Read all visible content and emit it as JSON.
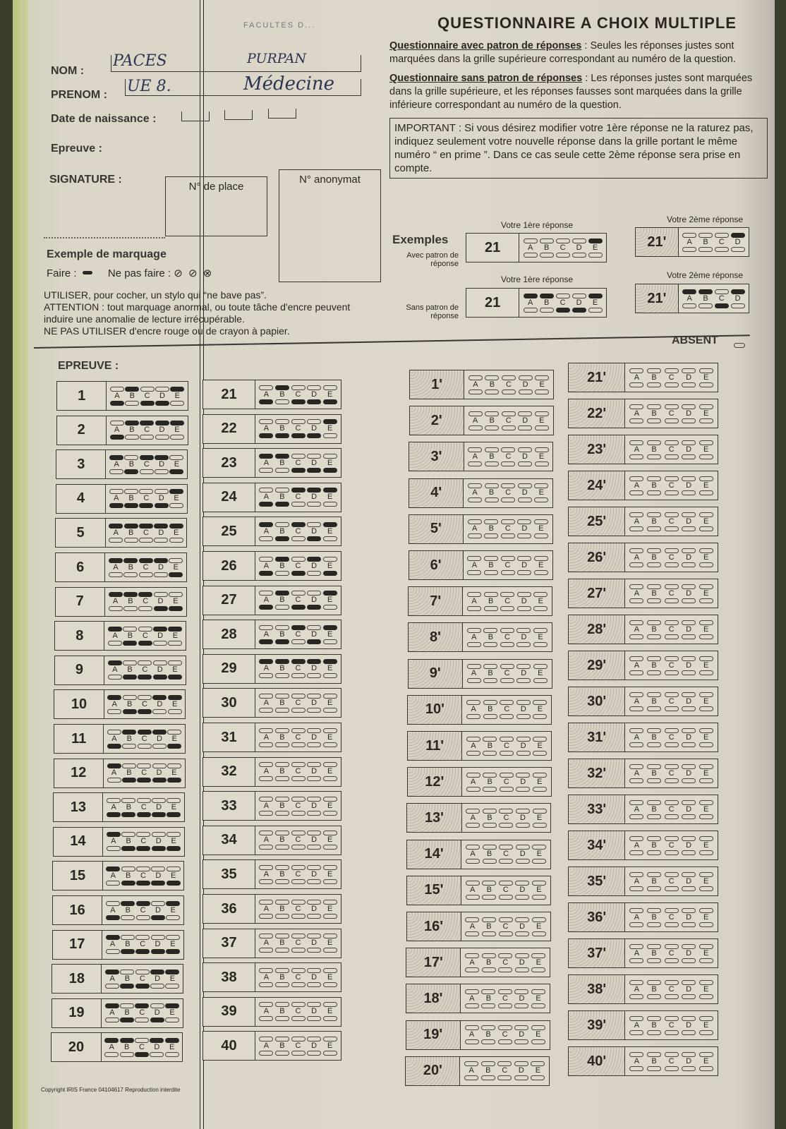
{
  "header": {
    "faded_title": "FACULTES D...",
    "title": "QUESTIONNAIRE A CHOIX MULTIPLE"
  },
  "identity": {
    "nom_label": "NOM :",
    "nom_value_1": "PACES",
    "nom_value_2": "PURPAN",
    "prenom_label": "PRENOM :",
    "prenom_value_1": "UE 8.",
    "prenom_value_2": "Médecine",
    "birth_label": "Date de naissance :",
    "epreuve_label": "Epreuve :",
    "signature_label": "SIGNATURE :",
    "place_label": "N° de place",
    "anonymat_label": "N° anonymat"
  },
  "instructions": {
    "avec_title": "Questionnaire avec patron de réponses",
    "avec_text": " : Seules les réponses justes sont marquées dans la grille supérieure correspondant au numéro de la question.",
    "sans_title": "Questionnaire sans patron de réponses",
    "sans_text": " : Les réponses justes sont marquées dans la grille supérieure, et les réponses fausses sont marquées dans la grille inférieure correspondant au numéro de la question.",
    "important": "IMPORTANT : Si vous désirez modifier votre 1ère réponse ne la raturez pas, indiquez seulement votre nouvelle réponse dans la grille portant le même numéro “ en prime ”. Dans ce cas seule cette 2ème réponse sera prise en compte."
  },
  "marking": {
    "title": "Exemple de marquage",
    "do": "Faire :",
    "dont": "Ne pas faire :",
    "warn1": "UTILISER, pour cocher, un stylo qui “ne bave pas”.",
    "warn2": "ATTENTION : tout marquage anormal, ou toute tâche d'encre peuvent induire une anomalie de lecture irrécupérable.",
    "warn3": "NE PAS UTILISER d'encre rouge ou de crayon à papier."
  },
  "examples": {
    "title": "Exemples",
    "first": "Votre 1ère réponse",
    "second": "Votre 2ème réponse",
    "avec": "Avec patron de réponse",
    "sans": "Sans patron de réponse",
    "rows": [
      {
        "n": "21",
        "top": [
          "E"
        ],
        "bottom": []
      },
      {
        "n": "21'",
        "top": [
          "D"
        ],
        "bottom": [],
        "letters": [
          "A",
          "B",
          "C",
          "D"
        ]
      },
      {
        "n": "21",
        "top": [
          "A",
          "B",
          "E"
        ],
        "bottom": [
          "C",
          "D"
        ]
      },
      {
        "n": "21'",
        "top": [
          "A",
          "B",
          "D"
        ],
        "bottom": [
          "C"
        ],
        "letters": [
          "A",
          "B",
          "C",
          "D"
        ]
      }
    ]
  },
  "absent_label": "ABSENT",
  "epreuve_heading": "EPREUVE :",
  "options": [
    "A",
    "B",
    "C",
    "D",
    "E"
  ],
  "answers": [
    {
      "n": "1",
      "top": [
        "B",
        "E"
      ],
      "bottom": [
        "A",
        "C",
        "D"
      ]
    },
    {
      "n": "2",
      "top": [
        "B",
        "C",
        "D",
        "E"
      ],
      "bottom": [
        "A"
      ]
    },
    {
      "n": "3",
      "top": [
        "A",
        "C",
        "D"
      ],
      "bottom": [
        "B",
        "E"
      ]
    },
    {
      "n": "4",
      "top": [
        "E"
      ],
      "bottom": [
        "A",
        "B",
        "C",
        "D"
      ]
    },
    {
      "n": "5",
      "top": [
        "A",
        "B",
        "C",
        "D",
        "E"
      ],
      "bottom": []
    },
    {
      "n": "6",
      "top": [
        "A",
        "B",
        "C",
        "D"
      ],
      "bottom": [
        "E"
      ]
    },
    {
      "n": "7",
      "top": [
        "A",
        "B",
        "C"
      ],
      "bottom": [
        "D",
        "E"
      ]
    },
    {
      "n": "8",
      "top": [
        "A",
        "D",
        "E"
      ],
      "bottom": [
        "B",
        "C"
      ]
    },
    {
      "n": "9",
      "top": [
        "A"
      ],
      "bottom": [
        "B",
        "C",
        "D",
        "E"
      ]
    },
    {
      "n": "10",
      "top": [
        "A",
        "D",
        "E"
      ],
      "bottom": [
        "B",
        "C"
      ]
    },
    {
      "n": "11",
      "top": [
        "B",
        "C",
        "D"
      ],
      "bottom": [
        "A",
        "E"
      ]
    },
    {
      "n": "12",
      "top": [
        "A"
      ],
      "bottom": [
        "B",
        "C",
        "D",
        "E"
      ]
    },
    {
      "n": "13",
      "top": [],
      "bottom": [
        "A",
        "B",
        "C",
        "D",
        "E"
      ]
    },
    {
      "n": "14",
      "top": [
        "A"
      ],
      "bottom": [
        "B",
        "C",
        "D",
        "E"
      ]
    },
    {
      "n": "15",
      "top": [
        "A"
      ],
      "bottom": [
        "B",
        "C",
        "D",
        "E"
      ]
    },
    {
      "n": "16",
      "top": [
        "B",
        "C",
        "E"
      ],
      "bottom": [
        "A",
        "D"
      ]
    },
    {
      "n": "17",
      "top": [
        "A"
      ],
      "bottom": [
        "B",
        "C",
        "D",
        "E"
      ]
    },
    {
      "n": "18",
      "top": [
        "A",
        "D",
        "E"
      ],
      "bottom": [
        "B",
        "C"
      ]
    },
    {
      "n": "19",
      "top": [
        "A",
        "C",
        "E"
      ],
      "bottom": [
        "B",
        "D"
      ]
    },
    {
      "n": "20",
      "top": [
        "A",
        "B",
        "D",
        "E"
      ],
      "bottom": [
        "C"
      ]
    },
    {
      "n": "21",
      "top": [
        "B"
      ],
      "bottom": [
        "A",
        "C",
        "D",
        "E"
      ]
    },
    {
      "n": "22",
      "top": [
        "E"
      ],
      "bottom": [
        "A",
        "B",
        "C",
        "D"
      ]
    },
    {
      "n": "23",
      "top": [
        "A",
        "B"
      ],
      "bottom": [
        "C",
        "D",
        "E"
      ]
    },
    {
      "n": "24",
      "top": [
        "C",
        "D",
        "E"
      ],
      "bottom": [
        "A",
        "B"
      ]
    },
    {
      "n": "25",
      "top": [
        "A",
        "C",
        "E"
      ],
      "bottom": [
        "B",
        "D"
      ]
    },
    {
      "n": "26",
      "top": [
        "B",
        "D"
      ],
      "bottom": [
        "A",
        "C",
        "E"
      ]
    },
    {
      "n": "27",
      "top": [
        "B",
        "E"
      ],
      "bottom": [
        "A",
        "C",
        "D"
      ]
    },
    {
      "n": "28",
      "top": [
        "C",
        "E"
      ],
      "bottom": [
        "A",
        "B",
        "D"
      ]
    },
    {
      "n": "29",
      "top": [
        "A",
        "B",
        "C",
        "D",
        "E"
      ],
      "bottom": []
    },
    {
      "n": "30",
      "top": [],
      "bottom": []
    },
    {
      "n": "31",
      "top": [],
      "bottom": []
    },
    {
      "n": "32",
      "top": [],
      "bottom": []
    },
    {
      "n": "33",
      "top": [],
      "bottom": []
    },
    {
      "n": "34",
      "top": [],
      "bottom": []
    },
    {
      "n": "35",
      "top": [],
      "bottom": []
    },
    {
      "n": "36",
      "top": [],
      "bottom": []
    },
    {
      "n": "37",
      "top": [],
      "bottom": []
    },
    {
      "n": "38",
      "top": [],
      "bottom": []
    },
    {
      "n": "39",
      "top": [],
      "bottom": []
    },
    {
      "n": "40",
      "top": [],
      "bottom": []
    }
  ],
  "prime_answers": [
    "1'",
    "2'",
    "3'",
    "4'",
    "5'",
    "6'",
    "7'",
    "8'",
    "9'",
    "10'",
    "11'",
    "12'",
    "13'",
    "14'",
    "15'",
    "16'",
    "17'",
    "18'",
    "19'",
    "20'",
    "21'",
    "22'",
    "23'",
    "24'",
    "25'",
    "26'",
    "27'",
    "28'",
    "29'",
    "30'",
    "31'",
    "32'",
    "33'",
    "34'",
    "35'",
    "36'",
    "37'",
    "38'",
    "39'",
    "40'"
  ],
  "footer": {
    "copyright": "Copyright IRIS France 04104617 Reproduction interdite"
  }
}
